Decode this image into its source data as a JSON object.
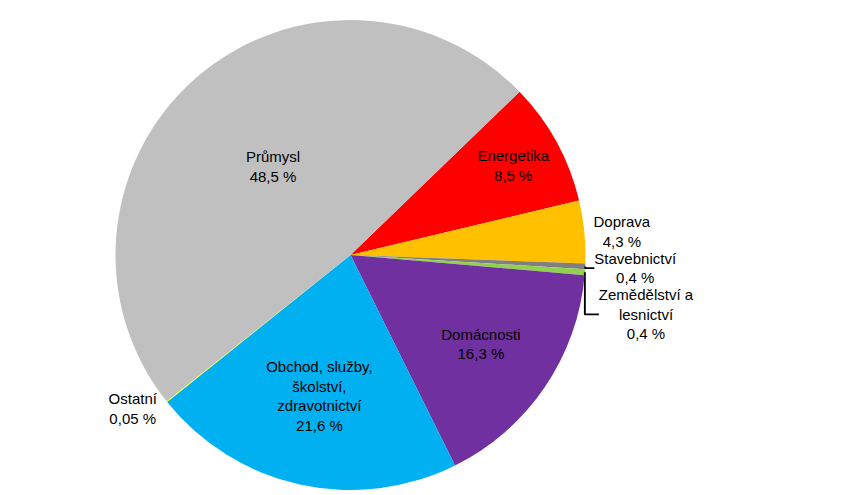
{
  "chart_data": {
    "type": "pie",
    "categories": [
      "Energetika",
      "Doprava",
      "Stavebnictví",
      "Zemědělství a lesnictví",
      "Domácnosti",
      "Obchod, služby, školství, zdravotnictví",
      "Ostatní",
      "Průmysl"
    ],
    "values": [
      8.5,
      4.3,
      0.4,
      0.4,
      16.3,
      21.6,
      0.05,
      48.5
    ],
    "value_labels": [
      "8,5 %",
      "4,3 %",
      "0,4 %",
      "0,4 %",
      "16,3 %",
      "21,6 %",
      "0,05 %",
      "48,5 %"
    ],
    "colors": [
      "#ff0000",
      "#ffc000",
      "#7f7f7f",
      "#92d050",
      "#7030a0",
      "#00b0f0",
      "#ffff00",
      "#c0c0c0"
    ],
    "data_labels": true
  }
}
